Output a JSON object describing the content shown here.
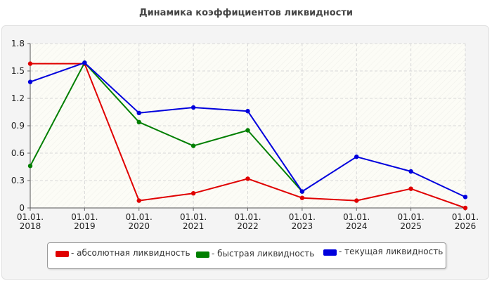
{
  "chart_data": {
    "type": "line",
    "title": "Динамика коэффициентов ликвидности",
    "xlabel": "",
    "ylabel": "",
    "x": [
      "01.01.2018",
      "01.01.2019",
      "01.01.2020",
      "01.01.2021",
      "01.01.2022",
      "01.01.2023",
      "01.01.2024",
      "01.01.2025",
      "01.01.2026"
    ],
    "x_tick_labels": [
      [
        "01.01.",
        "2018"
      ],
      [
        "01.01.",
        "2019"
      ],
      [
        "01.01.",
        "2020"
      ],
      [
        "01.01.",
        "2021"
      ],
      [
        "01.01.",
        "2022"
      ],
      [
        "01.01.",
        "2023"
      ],
      [
        "01.01.",
        "2024"
      ],
      [
        "01.01.",
        "2025"
      ],
      [
        "01.01.",
        "2026"
      ]
    ],
    "y_ticks": [
      "0",
      "0.3",
      "0.6",
      "0.9",
      "1.2",
      "1.5",
      "1.8"
    ],
    "ylim": [
      0,
      1.8
    ],
    "grid": true,
    "legend_position": "bottom",
    "series": [
      {
        "name": "- абсолютная ликвидность",
        "color": "#e00000",
        "values": [
          1.58,
          1.58,
          0.08,
          0.16,
          0.32,
          0.11,
          0.08,
          0.21,
          0.0
        ]
      },
      {
        "name": "- быстрая ликвидность",
        "color": "#007f00",
        "values": [
          0.46,
          1.59,
          0.94,
          0.68,
          0.85,
          0.18,
          null,
          null,
          null
        ]
      },
      {
        "name": "- текущая ликвидность",
        "color": "#0000dd",
        "values": [
          1.38,
          1.59,
          1.04,
          1.1,
          1.06,
          0.18,
          0.56,
          0.4,
          0.12
        ]
      }
    ]
  }
}
